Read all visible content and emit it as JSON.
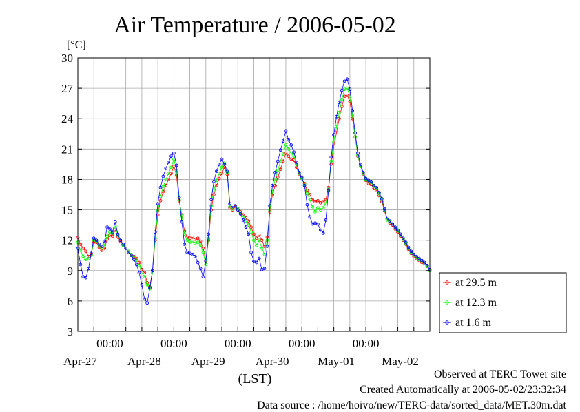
{
  "chart_data": {
    "type": "line",
    "title": "Air Temperature / 2006-05-02",
    "ylabel": "[°C]",
    "xlabel": "(LST)",
    "ylim": [
      3,
      30
    ],
    "yticks": [
      3,
      6,
      9,
      12,
      15,
      18,
      21,
      24,
      27,
      30
    ],
    "x_range_hours": [
      -108,
      24
    ],
    "time_labels": [
      "00:00",
      "00:00",
      "00:00",
      "00:00",
      "00:00"
    ],
    "day_labels": [
      "Apr-27",
      "Apr-28",
      "Apr-29",
      "Apr-30",
      "May-01",
      "May-02"
    ],
    "grid": true,
    "legend_position": "outside-right",
    "series": [
      {
        "name": "at 29.5 m",
        "color": "#ff0000",
        "x": [
          -108,
          -107,
          -106,
          -105,
          -104,
          -103,
          -102,
          -101,
          -100,
          -99,
          -98,
          -97,
          -96,
          -95,
          -94,
          -93,
          -92,
          -91,
          -90,
          -89,
          -88,
          -87,
          -86,
          -85,
          -84,
          -83,
          -82,
          -81,
          -80,
          -79,
          -78,
          -77,
          -76,
          -75,
          -74,
          -73,
          -72,
          -71,
          -70,
          -69,
          -68,
          -67,
          -66,
          -65,
          -64,
          -63,
          -62,
          -61,
          -60,
          -59,
          -58,
          -57,
          -56,
          -55,
          -54,
          -53,
          -52,
          -51,
          -50,
          -49,
          -48,
          -47,
          -46,
          -45,
          -44,
          -43,
          -42,
          -41,
          -40,
          -39,
          -38,
          -37,
          -36,
          -35,
          -34,
          -33,
          -32,
          -31,
          -30,
          -29,
          -28,
          -27,
          -26,
          -25,
          -24,
          -23,
          -22,
          -21,
          -20,
          -19,
          -18,
          -17,
          -16,
          -15,
          -14,
          -13,
          -12,
          -11,
          -10,
          -9,
          -8,
          -7,
          -6,
          -5,
          -4,
          -3,
          -2,
          -1,
          0,
          1,
          2,
          3,
          4,
          5,
          6,
          7,
          8,
          9,
          10,
          11,
          12,
          13,
          14,
          15,
          16,
          17,
          18,
          19,
          20,
          21,
          22,
          23,
          24
        ],
        "values": [
          12.3,
          11.6,
          11.2,
          10.9,
          10.4,
          10.6,
          11.8,
          11.8,
          11.3,
          11.0,
          11.2,
          12.1,
          12.5,
          12.4,
          13.0,
          12.3,
          11.9,
          11.5,
          11.2,
          10.9,
          10.6,
          10.4,
          10.2,
          9.8,
          9.1,
          8.8,
          7.8,
          7.4,
          9.0,
          12.0,
          14.5,
          15.9,
          16.8,
          17.4,
          18.0,
          18.6,
          19.3,
          18.4,
          15.9,
          14.5,
          12.9,
          12.3,
          12.2,
          12.3,
          12.1,
          12.2,
          11.9,
          11.2,
          10.0,
          12.0,
          15.0,
          16.5,
          17.4,
          18.1,
          18.6,
          19.2,
          18.5,
          15.2,
          15.0,
          15.3,
          15.0,
          14.8,
          14.5,
          14.2,
          13.9,
          13.3,
          12.6,
          12.2,
          12.5,
          12.0,
          11.4,
          12.3,
          14.8,
          16.5,
          17.4,
          18.2,
          19.0,
          19.8,
          20.6,
          20.3,
          20.0,
          19.9,
          19.2,
          18.5,
          18.1,
          17.6,
          16.9,
          16.5,
          16.0,
          15.8,
          15.9,
          15.7,
          15.8,
          16.0,
          17.2,
          19.5,
          21.3,
          22.6,
          24.0,
          25.2,
          26.2,
          26.3,
          25.7,
          24.0,
          22.2,
          20.3,
          19.3,
          18.5,
          17.9,
          17.6,
          17.5,
          17.1,
          16.9,
          16.4,
          15.8,
          14.9,
          14.0,
          13.7,
          13.5,
          13.1,
          12.8,
          12.4,
          12.0,
          11.6,
          11.1,
          10.7,
          10.4,
          10.2,
          10.0,
          9.8,
          9.7,
          9.4,
          9.0
        ],
        "line_values": [
          12.3,
          11.6,
          11.2,
          10.9,
          10.4,
          10.6,
          11.8,
          11.8,
          11.3,
          11.0,
          11.2,
          12.1,
          12.5,
          12.4,
          13.0,
          12.3,
          11.9,
          11.5,
          11.2,
          10.9,
          10.6,
          10.4,
          10.2,
          9.8,
          9.1,
          8.8,
          7.8,
          7.4,
          9.0,
          12.0,
          14.5,
          15.9,
          16.8,
          17.4,
          18.0,
          18.6,
          19.3,
          18.4,
          15.9,
          14.5,
          12.9,
          12.3,
          12.2,
          12.3,
          12.1,
          12.2,
          11.9,
          11.2,
          10.0,
          12.0,
          15.0,
          16.5,
          17.4,
          18.1,
          18.6,
          19.2,
          18.5,
          15.2,
          15.0,
          15.3,
          15.0,
          14.8,
          14.5,
          14.2,
          13.9,
          13.3,
          12.6,
          12.2,
          12.5,
          12.0,
          11.4,
          12.3,
          14.8,
          16.5,
          17.4,
          18.2,
          19.0,
          19.8,
          20.6,
          20.3,
          20.0,
          19.9,
          19.2,
          18.5,
          18.1,
          17.6,
          16.9,
          16.5,
          16.0,
          15.8,
          15.9,
          15.7,
          15.8,
          16.0,
          17.2,
          19.5,
          21.3,
          22.6,
          24.0,
          25.2,
          26.2,
          26.3,
          25.7,
          24.0,
          22.2,
          20.3,
          19.3,
          18.5,
          17.9,
          17.6,
          17.5,
          17.1,
          16.9,
          16.4,
          15.8,
          14.9,
          14.0,
          13.7,
          13.5,
          13.1,
          12.8,
          12.4,
          12.0,
          11.6,
          11.1,
          10.7,
          10.4,
          10.2,
          10.0,
          9.8,
          9.7,
          9.4,
          9.0
        ]
      },
      {
        "name": "at 12.3 m",
        "color": "#00ff00",
        "x": [
          -108,
          -107,
          -106,
          -105,
          -104,
          -103,
          -102,
          -101,
          -100,
          -99,
          -98,
          -97,
          -96,
          -95,
          -94,
          -93,
          -92,
          -91,
          -90,
          -89,
          -88,
          -87,
          -86,
          -85,
          -84,
          -83,
          -82,
          -81,
          -80,
          -79,
          -78,
          -77,
          -76,
          -75,
          -74,
          -73,
          -72,
          -71,
          -70,
          -69,
          -68,
          -67,
          -66,
          -65,
          -64,
          -63,
          -62,
          -61,
          -60,
          -59,
          -58,
          -57,
          -56,
          -55,
          -54,
          -53,
          -52,
          -51,
          -50,
          -49,
          -48,
          -47,
          -46,
          -45,
          -44,
          -43,
          -42,
          -41,
          -40,
          -39,
          -38,
          -37,
          -36,
          -35,
          -34,
          -33,
          -32,
          -31,
          -30,
          -29,
          -28,
          -27,
          -26,
          -25,
          -24,
          -23,
          -22,
          -21,
          -20,
          -19,
          -18,
          -17,
          -16,
          -15,
          -14,
          -13,
          -12,
          -11,
          -10,
          -9,
          -8,
          -7,
          -6,
          -5,
          -4,
          -3,
          -2,
          -1,
          0,
          1,
          2,
          3,
          4,
          5,
          6,
          7,
          8,
          9,
          10,
          11,
          12,
          13,
          14,
          15,
          16,
          17,
          18,
          19,
          20,
          21,
          22,
          23,
          24
        ],
        "values": [
          11.8,
          11.0,
          10.4,
          10.1,
          10.2,
          10.5,
          12.0,
          11.9,
          11.4,
          11.2,
          11.5,
          12.4,
          12.8,
          12.7,
          13.4,
          12.5,
          12.0,
          11.5,
          11.2,
          10.9,
          10.6,
          10.3,
          10.0,
          9.5,
          8.8,
          8.4,
          7.6,
          7.2,
          8.8,
          12.2,
          14.9,
          16.3,
          17.3,
          18.0,
          18.6,
          19.2,
          20.0,
          18.9,
          16.0,
          14.4,
          12.6,
          12.0,
          11.8,
          11.9,
          11.7,
          11.8,
          11.5,
          10.8,
          9.6,
          12.2,
          15.4,
          16.9,
          17.9,
          18.6,
          19.2,
          19.6,
          18.7,
          15.3,
          15.1,
          15.4,
          15.1,
          14.7,
          14.3,
          13.9,
          13.5,
          12.8,
          12.0,
          11.5,
          12.0,
          11.2,
          10.6,
          12.0,
          15.0,
          16.8,
          18.0,
          18.9,
          19.8,
          20.5,
          21.4,
          21.0,
          20.6,
          20.3,
          19.5,
          18.6,
          18.1,
          17.5,
          16.6,
          16.0,
          15.3,
          14.8,
          15.2,
          15.0,
          15.2,
          15.6,
          17.0,
          19.8,
          21.7,
          23.2,
          24.6,
          25.9,
          26.9,
          27.0,
          26.2,
          24.3,
          22.2,
          20.4,
          19.3,
          18.6,
          18.0,
          17.8,
          17.7,
          17.3,
          17.1,
          16.6,
          16.0,
          15.0,
          14.0,
          13.8,
          13.6,
          13.2,
          12.9,
          12.5,
          12.1,
          11.7,
          11.2,
          10.8,
          10.5,
          10.3,
          10.1,
          9.9,
          9.7,
          9.4,
          9.0
        ]
      },
      {
        "name": "at 1.6 m",
        "color": "#0000ff",
        "x": [
          -108,
          -107,
          -106,
          -105,
          -104,
          -103,
          -102,
          -101,
          -100,
          -99,
          -98,
          -97,
          -96,
          -95,
          -94,
          -93,
          -92,
          -91,
          -90,
          -89,
          -88,
          -87,
          -86,
          -85,
          -84,
          -83,
          -82,
          -81,
          -80,
          -79,
          -78,
          -77,
          -76,
          -75,
          -74,
          -73,
          -72,
          -71,
          -70,
          -69,
          -68,
          -67,
          -66,
          -65,
          -64,
          -63,
          -62,
          -61,
          -60,
          -59,
          -58,
          -57,
          -56,
          -55,
          -54,
          -53,
          -52,
          -51,
          -50,
          -49,
          -48,
          -47,
          -46,
          -45,
          -44,
          -43,
          -42,
          -41,
          -40,
          -39,
          -38,
          -37,
          -36,
          -35,
          -34,
          -33,
          -32,
          -31,
          -30,
          -29,
          -28,
          -27,
          -26,
          -25,
          -24,
          -23,
          -22,
          -21,
          -20,
          -19,
          -18,
          -17,
          -16,
          -15,
          -14,
          -13,
          -12,
          -11,
          -10,
          -9,
          -8,
          -7,
          -6,
          -5,
          -4,
          -3,
          -2,
          -1,
          0,
          1,
          2,
          3,
          4,
          5,
          6,
          7,
          8,
          9,
          10,
          11,
          12,
          13,
          14,
          15,
          16,
          17,
          18,
          19,
          20,
          21,
          22,
          23,
          24
        ],
        "values": [
          11.2,
          9.6,
          8.4,
          8.3,
          9.2,
          10.7,
          12.2,
          12.0,
          11.6,
          11.4,
          11.9,
          13.3,
          13.1,
          12.8,
          13.8,
          12.6,
          12.0,
          11.6,
          11.2,
          10.8,
          10.5,
          10.1,
          9.6,
          8.8,
          7.6,
          6.2,
          5.8,
          7.3,
          9.0,
          12.8,
          15.6,
          17.2,
          18.3,
          19.1,
          19.7,
          20.3,
          20.6,
          19.4,
          16.2,
          13.8,
          11.6,
          10.8,
          10.7,
          10.6,
          10.4,
          9.8,
          9.2,
          8.4,
          9.9,
          12.6,
          16.0,
          17.8,
          18.8,
          19.5,
          20.0,
          19.5,
          18.8,
          15.6,
          15.2,
          15.4,
          15.0,
          14.6,
          14.0,
          13.3,
          12.6,
          10.8,
          9.9,
          9.8,
          10.2,
          9.1,
          9.2,
          11.4,
          15.4,
          17.4,
          18.7,
          19.8,
          20.9,
          21.8,
          22.8,
          21.9,
          21.4,
          20.7,
          19.7,
          18.7,
          18.2,
          17.4,
          15.5,
          14.3,
          13.6,
          13.7,
          13.6,
          13.0,
          12.7,
          14.0,
          16.9,
          20.2,
          22.4,
          24.2,
          25.6,
          26.8,
          27.7,
          27.9,
          26.9,
          24.8,
          22.6,
          20.6,
          19.5,
          18.7,
          18.1,
          17.9,
          17.8,
          17.4,
          17.2,
          16.7,
          16.1,
          15.1,
          14.1,
          13.9,
          13.6,
          13.3,
          13.0,
          12.6,
          12.2,
          11.8,
          11.3,
          10.9,
          10.6,
          10.4,
          10.2,
          10.0,
          9.8,
          9.5,
          9.1
        ]
      }
    ]
  },
  "footer": {
    "observed": "Observed at TERC Tower site",
    "created": "Created Automatically at 2006-05-02/23:32:34",
    "source": "Data source : /home/hoivo/new/TERC-data/sorted_data/MET.30m.dat"
  }
}
